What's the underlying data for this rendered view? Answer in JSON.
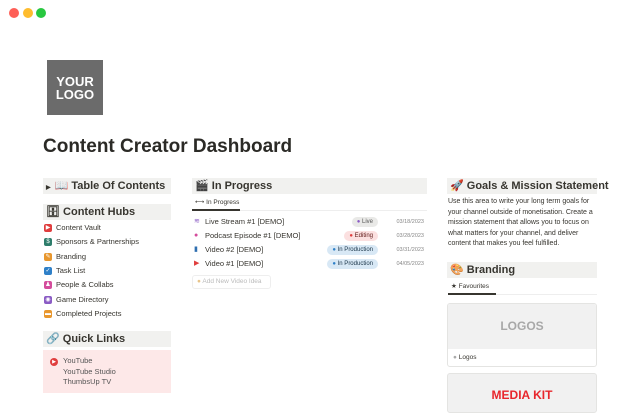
{
  "window": {
    "controls": [
      "close",
      "minimize",
      "maximize"
    ]
  },
  "logo": {
    "line1": "YOUR",
    "line2": "LOGO"
  },
  "page_title": "Content Creator Dashboard",
  "toc": {
    "icon": "📖",
    "label": "Table Of Contents"
  },
  "content_hubs": {
    "icon": "🗄",
    "label": "Content Hubs",
    "items": [
      {
        "label": "Content Vault",
        "icon": "video-icon",
        "color": "#e03e3e"
      },
      {
        "label": "Sponsors & Partnerships",
        "icon": "money-icon",
        "color": "#2e7d6b"
      },
      {
        "label": "Branding",
        "icon": "pencil-icon",
        "color": "#e8972e"
      },
      {
        "label": "Task List",
        "icon": "check-icon",
        "color": "#2f80c8"
      },
      {
        "label": "People & Collabs",
        "icon": "people-icon",
        "color": "#d44c9c"
      },
      {
        "label": "Game Directory",
        "icon": "gamepad-icon",
        "color": "#8a5bc4"
      },
      {
        "label": "Completed Projects",
        "icon": "archive-icon",
        "color": "#e8972e"
      }
    ]
  },
  "quick_links": {
    "icon": "🔗",
    "label": "Quick Links",
    "links": [
      "YouTube",
      "YouTube Studio",
      "ThumbsUp TV"
    ]
  },
  "in_progress": {
    "icon": "🎬",
    "label": "In Progress",
    "tab": "In Progress",
    "rows": [
      {
        "title": "Live Stream #1 [DEMO]",
        "icon": "wifi-icon",
        "icon_color": "#8a5bc4",
        "status": "Live",
        "status_bg": "#e9e9e7",
        "status_color": "#555",
        "dot": "#8a5bc4",
        "date": "03/18/2023"
      },
      {
        "title": "Podcast Episode #1 [DEMO]",
        "icon": "microphone-icon",
        "icon_color": "#d44c9c",
        "status": "Editing",
        "status_bg": "#fbe0e0",
        "status_color": "#5d1715",
        "dot": "#e03e3e",
        "date": "03/28/2023"
      },
      {
        "title": "Video #2 [DEMO]",
        "icon": "phone-icon",
        "icon_color": "#2f6fb0",
        "status": "In Production",
        "status_bg": "#d8e8f5",
        "status_color": "#183347",
        "dot": "#2f80c8",
        "date": "03/31/2023"
      },
      {
        "title": "Video #1 [DEMO]",
        "icon": "play-icon",
        "icon_color": "#e03e3e",
        "status": "In Production",
        "status_bg": "#d8e8f5",
        "status_color": "#183347",
        "dot": "#2f80c8",
        "date": "04/05/2023"
      }
    ],
    "add_label": "Add New Video Idea"
  },
  "goals": {
    "icon": "🚀",
    "label": "Goals & Mission Statement",
    "text": "Use this area to write your long term goals for your channel outside of monetisation. Create a mission statement that allows you to focus on what matters for your channel, and deliver content that makes you feel fulfilled."
  },
  "branding": {
    "icon": "🎨",
    "label": "Branding",
    "tab": "Favourites",
    "cards": [
      {
        "cover": "LOGOS",
        "name": "Logos"
      },
      {
        "cover": "MEDIA KIT"
      }
    ]
  }
}
